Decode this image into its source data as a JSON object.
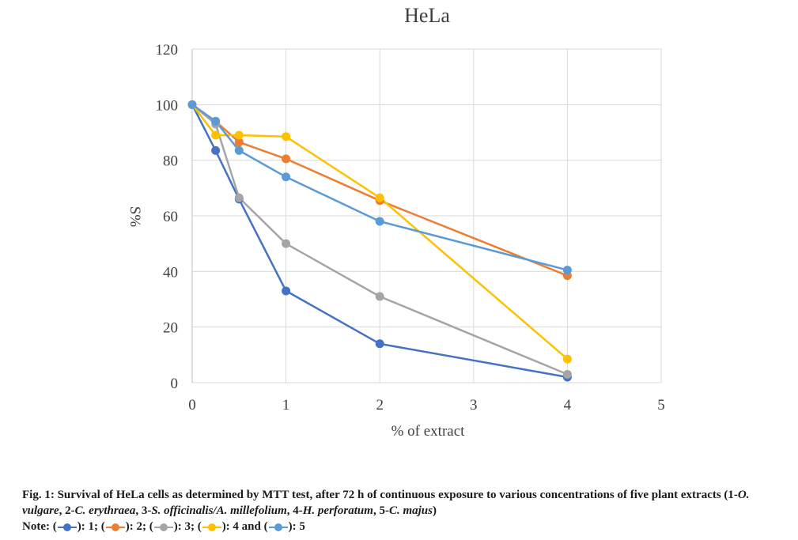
{
  "chart_data": {
    "type": "line",
    "title": "HeLa",
    "xlabel": "% of extract",
    "ylabel": "S%",
    "xlim": [
      0,
      5
    ],
    "ylim": [
      0,
      120
    ],
    "x_ticks": [
      "0",
      "1",
      "2",
      "3",
      "4",
      "5"
    ],
    "y_ticks": [
      "0",
      "20",
      "40",
      "60",
      "80",
      "100",
      "120"
    ],
    "grid": true,
    "x": [
      0,
      0.25,
      0.5,
      1,
      2,
      4
    ],
    "series": [
      {
        "name": "1",
        "color": "#4472c4",
        "values": [
          100,
          83.5,
          66,
          33,
          14,
          2
        ]
      },
      {
        "name": "2",
        "color": "#ed7d31",
        "values": [
          100,
          94,
          86.5,
          80.5,
          65.5,
          38.5
        ]
      },
      {
        "name": "3",
        "color": "#a5a5a5",
        "values": [
          100,
          93,
          66.5,
          50,
          31,
          3
        ]
      },
      {
        "name": "4",
        "color": "#ffc000",
        "values": [
          100,
          89,
          89,
          88.5,
          66.5,
          8.5
        ]
      },
      {
        "name": "5",
        "color": "#5b9bd5",
        "values": [
          100,
          94,
          83.5,
          74,
          58,
          40.5
        ]
      }
    ]
  },
  "caption": {
    "fig_label": "Fig. 1: Survival of HeLa cells as determined by MTT test, after 72 h of continuous exposure to various concentrations of five plant extracts (1-",
    "sp1": "O. vulgare",
    "sep1": ", 2-",
    "sp2": "C. erythraea",
    "sep2": ", 3-",
    "sp3": "S. officinalis/A. millefolium",
    "sep3": ", 4-",
    "sp4": "H. perforatum",
    "sep4": ", 5-",
    "sp5": "C. majus",
    "end": ")",
    "note_prefix": "Note: (",
    "n1": "): 1; (",
    "n2": "): 2; (",
    "n3": "): 3; (",
    "n4": "): 4 and (",
    "n5": "): 5"
  }
}
